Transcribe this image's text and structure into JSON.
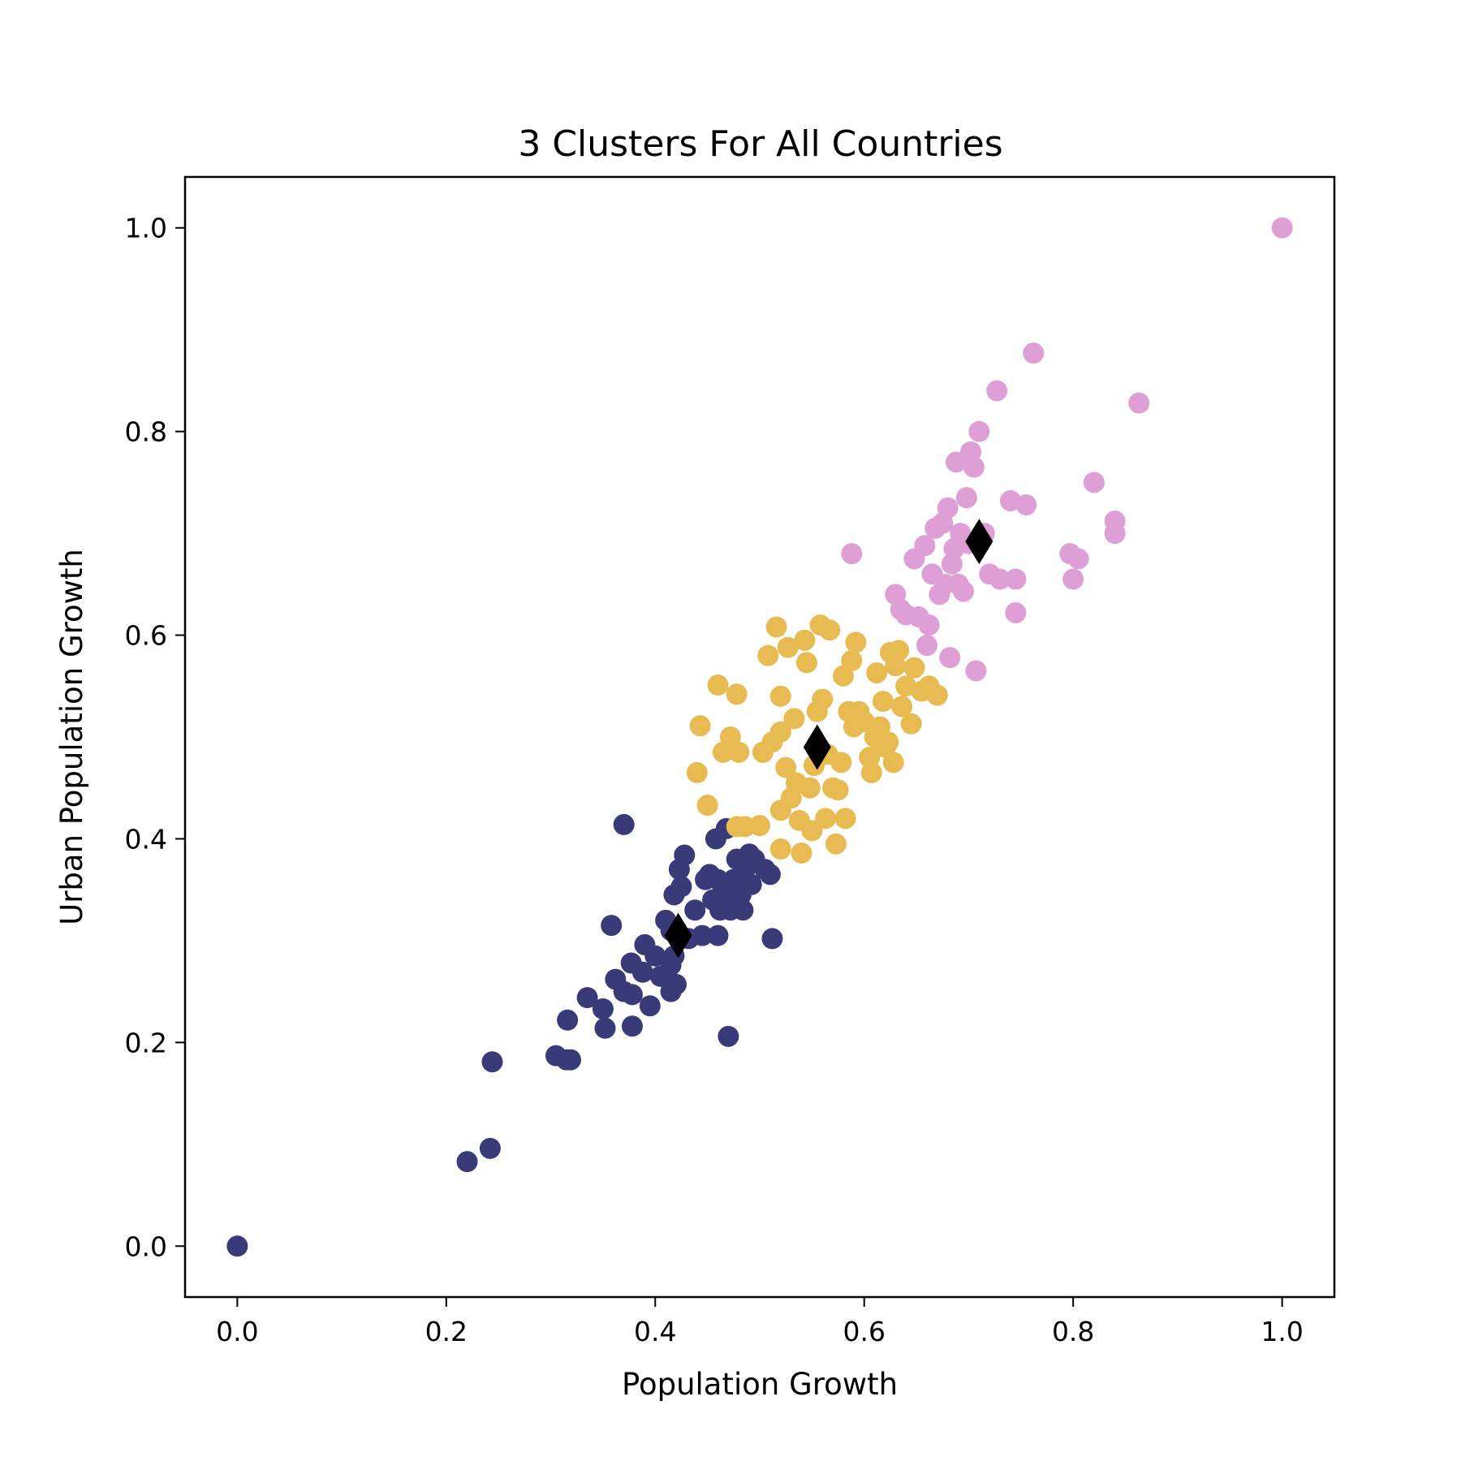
{
  "chart_data": {
    "type": "scatter",
    "title": "3 Clusters For All Countries",
    "xlabel": "Population Growth",
    "ylabel": "Urban Population Growth",
    "xlim": [
      -0.05,
      1.05
    ],
    "ylim": [
      -0.05,
      1.05
    ],
    "xticks": [
      "0.0",
      "0.2",
      "0.4",
      "0.6",
      "0.8",
      "1.0"
    ],
    "yticks": [
      "0.0",
      "0.2",
      "0.4",
      "0.6",
      "0.8",
      "1.0"
    ],
    "grid": false,
    "series": [
      {
        "color": "#393b79",
        "points": [
          [
            0.0,
            0.0
          ],
          [
            0.22,
            0.083
          ],
          [
            0.242,
            0.096
          ],
          [
            0.244,
            0.181
          ],
          [
            0.305,
            0.187
          ],
          [
            0.315,
            0.183
          ],
          [
            0.319,
            0.183
          ],
          [
            0.316,
            0.222
          ],
          [
            0.335,
            0.244
          ],
          [
            0.35,
            0.233
          ],
          [
            0.352,
            0.214
          ],
          [
            0.358,
            0.315
          ],
          [
            0.37,
            0.414
          ],
          [
            0.362,
            0.262
          ],
          [
            0.37,
            0.25
          ],
          [
            0.377,
            0.278
          ],
          [
            0.378,
            0.247
          ],
          [
            0.378,
            0.216
          ],
          [
            0.388,
            0.269
          ],
          [
            0.39,
            0.296
          ],
          [
            0.395,
            0.236
          ],
          [
            0.4,
            0.285
          ],
          [
            0.405,
            0.265
          ],
          [
            0.41,
            0.32
          ],
          [
            0.415,
            0.31
          ],
          [
            0.415,
            0.276
          ],
          [
            0.418,
            0.285
          ],
          [
            0.415,
            0.25
          ],
          [
            0.42,
            0.257
          ],
          [
            0.418,
            0.345
          ],
          [
            0.425,
            0.353
          ],
          [
            0.423,
            0.37
          ],
          [
            0.428,
            0.384
          ],
          [
            0.432,
            0.302
          ],
          [
            0.438,
            0.33
          ],
          [
            0.445,
            0.305
          ],
          [
            0.448,
            0.36
          ],
          [
            0.452,
            0.365
          ],
          [
            0.455,
            0.34
          ],
          [
            0.458,
            0.4
          ],
          [
            0.46,
            0.36
          ],
          [
            0.46,
            0.305
          ],
          [
            0.462,
            0.33
          ],
          [
            0.465,
            0.35
          ],
          [
            0.468,
            0.41
          ],
          [
            0.47,
            0.345
          ],
          [
            0.472,
            0.33
          ],
          [
            0.475,
            0.36
          ],
          [
            0.478,
            0.38
          ],
          [
            0.482,
            0.345
          ],
          [
            0.484,
            0.33
          ],
          [
            0.486,
            0.37
          ],
          [
            0.49,
            0.385
          ],
          [
            0.492,
            0.355
          ],
          [
            0.495,
            0.38
          ],
          [
            0.505,
            0.37
          ],
          [
            0.51,
            0.365
          ],
          [
            0.512,
            0.302
          ],
          [
            0.47,
            0.206
          ]
        ]
      },
      {
        "color": "#e7ba52",
        "points": [
          [
            0.44,
            0.465
          ],
          [
            0.443,
            0.511
          ],
          [
            0.45,
            0.433
          ],
          [
            0.46,
            0.551
          ],
          [
            0.465,
            0.485
          ],
          [
            0.472,
            0.5
          ],
          [
            0.478,
            0.542
          ],
          [
            0.48,
            0.485
          ],
          [
            0.478,
            0.412
          ],
          [
            0.486,
            0.412
          ],
          [
            0.5,
            0.413
          ],
          [
            0.503,
            0.485
          ],
          [
            0.508,
            0.58
          ],
          [
            0.512,
            0.495
          ],
          [
            0.516,
            0.608
          ],
          [
            0.52,
            0.39
          ],
          [
            0.52,
            0.505
          ],
          [
            0.52,
            0.54
          ],
          [
            0.52,
            0.428
          ],
          [
            0.525,
            0.47
          ],
          [
            0.527,
            0.588
          ],
          [
            0.53,
            0.44
          ],
          [
            0.533,
            0.518
          ],
          [
            0.535,
            0.455
          ],
          [
            0.538,
            0.418
          ],
          [
            0.54,
            0.386
          ],
          [
            0.543,
            0.595
          ],
          [
            0.545,
            0.573
          ],
          [
            0.548,
            0.45
          ],
          [
            0.55,
            0.408
          ],
          [
            0.552,
            0.472
          ],
          [
            0.555,
            0.525
          ],
          [
            0.558,
            0.61
          ],
          [
            0.56,
            0.537
          ],
          [
            0.563,
            0.42
          ],
          [
            0.565,
            0.483
          ],
          [
            0.567,
            0.605
          ],
          [
            0.57,
            0.45
          ],
          [
            0.573,
            0.395
          ],
          [
            0.575,
            0.448
          ],
          [
            0.578,
            0.475
          ],
          [
            0.58,
            0.56
          ],
          [
            0.582,
            0.42
          ],
          [
            0.585,
            0.525
          ],
          [
            0.588,
            0.575
          ],
          [
            0.59,
            0.51
          ],
          [
            0.592,
            0.593
          ],
          [
            0.595,
            0.525
          ],
          [
            0.6,
            0.515
          ],
          [
            0.605,
            0.48
          ],
          [
            0.607,
            0.465
          ],
          [
            0.61,
            0.5
          ],
          [
            0.612,
            0.563
          ],
          [
            0.615,
            0.51
          ],
          [
            0.618,
            0.535
          ],
          [
            0.62,
            0.49
          ],
          [
            0.623,
            0.495
          ],
          [
            0.625,
            0.583
          ],
          [
            0.628,
            0.475
          ],
          [
            0.63,
            0.57
          ],
          [
            0.633,
            0.585
          ],
          [
            0.636,
            0.53
          ],
          [
            0.64,
            0.55
          ],
          [
            0.645,
            0.513
          ],
          [
            0.648,
            0.568
          ],
          [
            0.655,
            0.545
          ],
          [
            0.662,
            0.55
          ],
          [
            0.67,
            0.541
          ]
        ]
      },
      {
        "color": "#de9ed6",
        "points": [
          [
            0.588,
            0.68
          ],
          [
            0.63,
            0.64
          ],
          [
            0.635,
            0.625
          ],
          [
            0.64,
            0.62
          ],
          [
            0.648,
            0.675
          ],
          [
            0.652,
            0.618
          ],
          [
            0.658,
            0.688
          ],
          [
            0.66,
            0.59
          ],
          [
            0.662,
            0.61
          ],
          [
            0.665,
            0.66
          ],
          [
            0.668,
            0.705
          ],
          [
            0.672,
            0.64
          ],
          [
            0.675,
            0.71
          ],
          [
            0.677,
            0.65
          ],
          [
            0.68,
            0.725
          ],
          [
            0.682,
            0.578
          ],
          [
            0.684,
            0.67
          ],
          [
            0.686,
            0.685
          ],
          [
            0.688,
            0.77
          ],
          [
            0.69,
            0.65
          ],
          [
            0.692,
            0.7
          ],
          [
            0.695,
            0.643
          ],
          [
            0.698,
            0.735
          ],
          [
            0.7,
            0.69
          ],
          [
            0.702,
            0.78
          ],
          [
            0.705,
            0.765
          ],
          [
            0.707,
            0.565
          ],
          [
            0.71,
            0.8
          ],
          [
            0.715,
            0.7
          ],
          [
            0.72,
            0.66
          ],
          [
            0.727,
            0.84
          ],
          [
            0.73,
            0.655
          ],
          [
            0.74,
            0.732
          ],
          [
            0.745,
            0.655
          ],
          [
            0.745,
            0.622
          ],
          [
            0.755,
            0.728
          ],
          [
            0.762,
            0.877
          ],
          [
            0.797,
            0.68
          ],
          [
            0.8,
            0.655
          ],
          [
            0.805,
            0.675
          ],
          [
            0.82,
            0.75
          ],
          [
            0.84,
            0.712
          ],
          [
            0.84,
            0.7
          ],
          [
            0.863,
            0.828
          ],
          [
            1.0,
            1.0
          ]
        ]
      }
    ],
    "centroids": {
      "color": "#000000",
      "marker": "diamond",
      "points": [
        [
          0.422,
          0.305
        ],
        [
          0.555,
          0.49
        ],
        [
          0.71,
          0.692
        ]
      ]
    }
  }
}
